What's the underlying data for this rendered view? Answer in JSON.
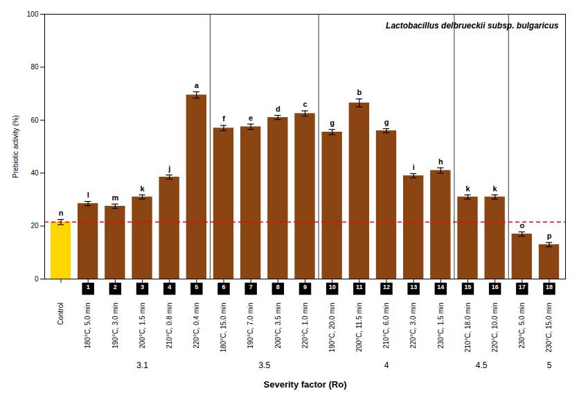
{
  "chart_data": {
    "type": "bar",
    "title": "Lactobacillus delbrueckii subsp. bulgaricus",
    "ylabel": "Prebiotic activity (%)",
    "xlabel": "Severity factor (Ro)",
    "categories": [
      "Control",
      "180°C, 5.0 min",
      "190°C, 3.0 min",
      "200°C, 1.5 min",
      "210°C, 0.8 min",
      "220°C, 0.4 min",
      "180°C, 15.0 min",
      "190°C, 7.0 min",
      "200°C, 3.5 min",
      "220°C, 1.0 min",
      "190°C, 20.0 min",
      "200°C, 11.5 min",
      "210°C, 6.0 min",
      "220°C, 3.0 min",
      "230°C, 1.5 min",
      "210°C, 18.0 min",
      "220°C, 10.0 min",
      "230°C, 5.0 min",
      "230°C, 15.0 min"
    ],
    "values": [
      21.5,
      28.5,
      27.5,
      31.0,
      38.5,
      69.5,
      57.0,
      57.5,
      61.0,
      62.5,
      55.5,
      66.5,
      56.0,
      39.0,
      41.0,
      31.0,
      31.0,
      17.0,
      13.0
    ],
    "errors": [
      1.0,
      0.8,
      0.8,
      0.8,
      0.8,
      1.2,
      1.0,
      1.0,
      0.8,
      1.0,
      1.0,
      1.5,
      0.8,
      0.8,
      1.0,
      0.8,
      0.8,
      0.8,
      0.8
    ],
    "colors": [
      "#FFD700",
      "#8B4513",
      "#8B4513",
      "#8B4513",
      "#8B4513",
      "#8B4513",
      "#8B4513",
      "#8B4513",
      "#8B4513",
      "#8B4513",
      "#8B4513",
      "#8B4513",
      "#8B4513",
      "#8B4513",
      "#8B4513",
      "#8B4513",
      "#8B4513",
      "#8B4513",
      "#8B4513"
    ],
    "letter_labels": [
      "n",
      "l",
      "m",
      "k",
      "j",
      "a",
      "f",
      "e",
      "d",
      "c",
      "g",
      "b",
      "g",
      "i",
      "h",
      "k",
      "k",
      "o",
      "p"
    ],
    "bar_numbers": [
      null,
      "1",
      "2",
      "3",
      "4",
      "5",
      "6",
      "7",
      "8",
      "9",
      "10",
      "11",
      "12",
      "13",
      "14",
      "15",
      "16",
      "17",
      "18"
    ],
    "groups": [
      {
        "label": "3.1",
        "categories": [
          "180°C, 5.0 min",
          "190°C, 3.0 min",
          "200°C, 1.5 min",
          "210°C, 0.8 min",
          "220°C, 0.4 min"
        ]
      },
      {
        "label": "3.5",
        "categories": [
          "180°C, 15.0 min",
          "190°C, 7.0 min",
          "200°C, 3.5 min",
          "220°C, 1.0 min"
        ]
      },
      {
        "label": "4",
        "categories": [
          "190°C, 20.0 min",
          "200°C, 11.5 min",
          "210°C, 6.0 min",
          "220°C, 3.0 min",
          "230°C, 1.5 min"
        ]
      },
      {
        "label": "4.5",
        "categories": [
          "210°C, 18.0 min",
          "220°C, 10.0 min"
        ]
      },
      {
        "label": "5",
        "categories": [
          "230°C, 15.0 min"
        ]
      }
    ],
    "reference_line": {
      "y": 21.5,
      "color": "#FF0000"
    },
    "ylim": [
      0,
      100
    ],
    "yticks": [
      0,
      20,
      40,
      60,
      80,
      100
    ]
  }
}
